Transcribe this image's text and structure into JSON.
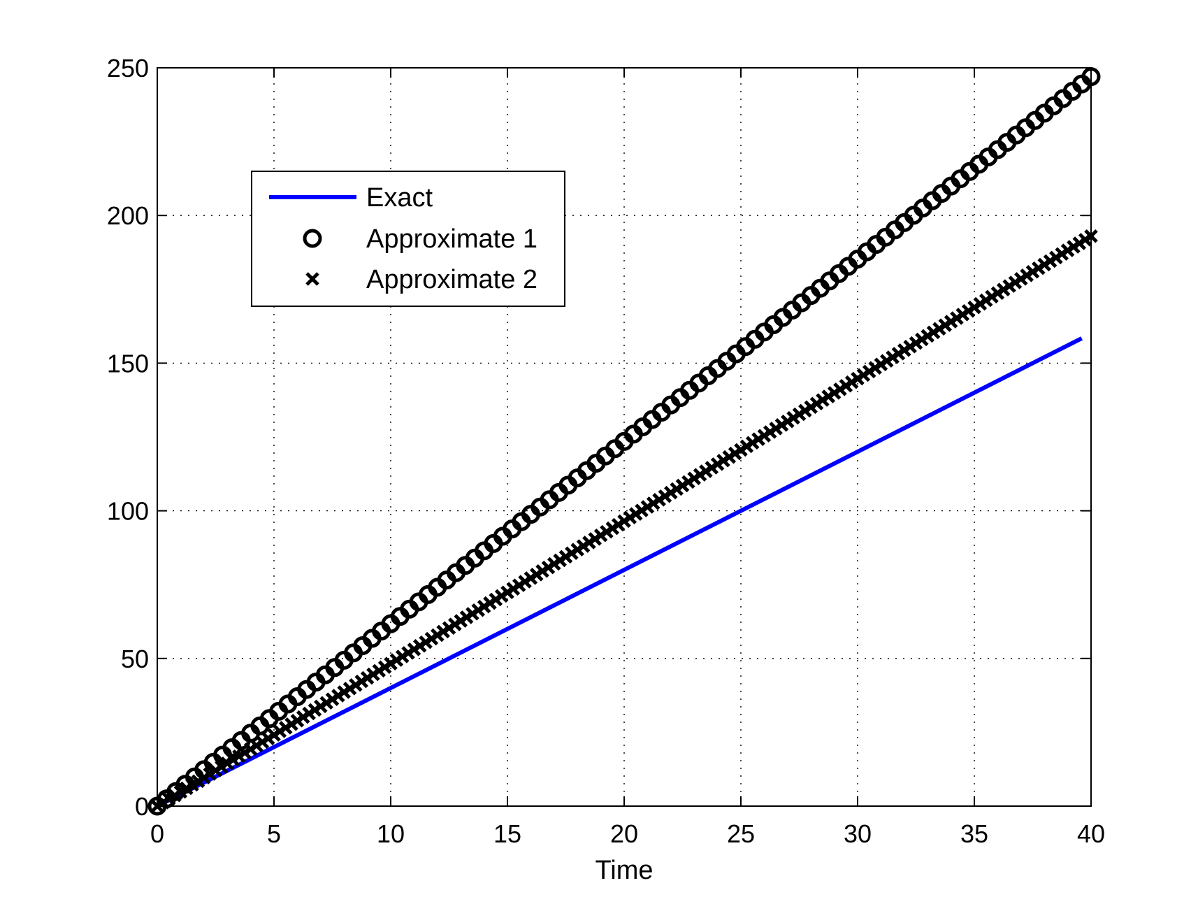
{
  "chart_data": {
    "type": "line",
    "title": "",
    "xlabel": "Time",
    "ylabel": "",
    "xlim": [
      0,
      40
    ],
    "ylim": [
      0,
      250
    ],
    "xticks": [
      0,
      5,
      10,
      15,
      20,
      25,
      30,
      35,
      40
    ],
    "yticks": [
      0,
      50,
      100,
      150,
      200,
      250
    ],
    "grid": true,
    "legend_position": "upper-left",
    "series": [
      {
        "name": "Exact",
        "style": "solid-line",
        "color": "#0000ff",
        "x": [
          0,
          39.6
        ],
        "y": [
          0,
          158.4
        ]
      },
      {
        "name": "Approximate 1",
        "style": "circle-markers",
        "color": "#000000",
        "x_start": 0,
        "x_end": 40,
        "x_step": 0.4,
        "y_start": 0,
        "y_end": 247
      },
      {
        "name": "Approximate 2",
        "style": "x-markers",
        "color": "#000000",
        "x_start": 0,
        "x_end": 40,
        "x_step": 0.25,
        "y_start": 0,
        "y_end": 193
      }
    ]
  }
}
